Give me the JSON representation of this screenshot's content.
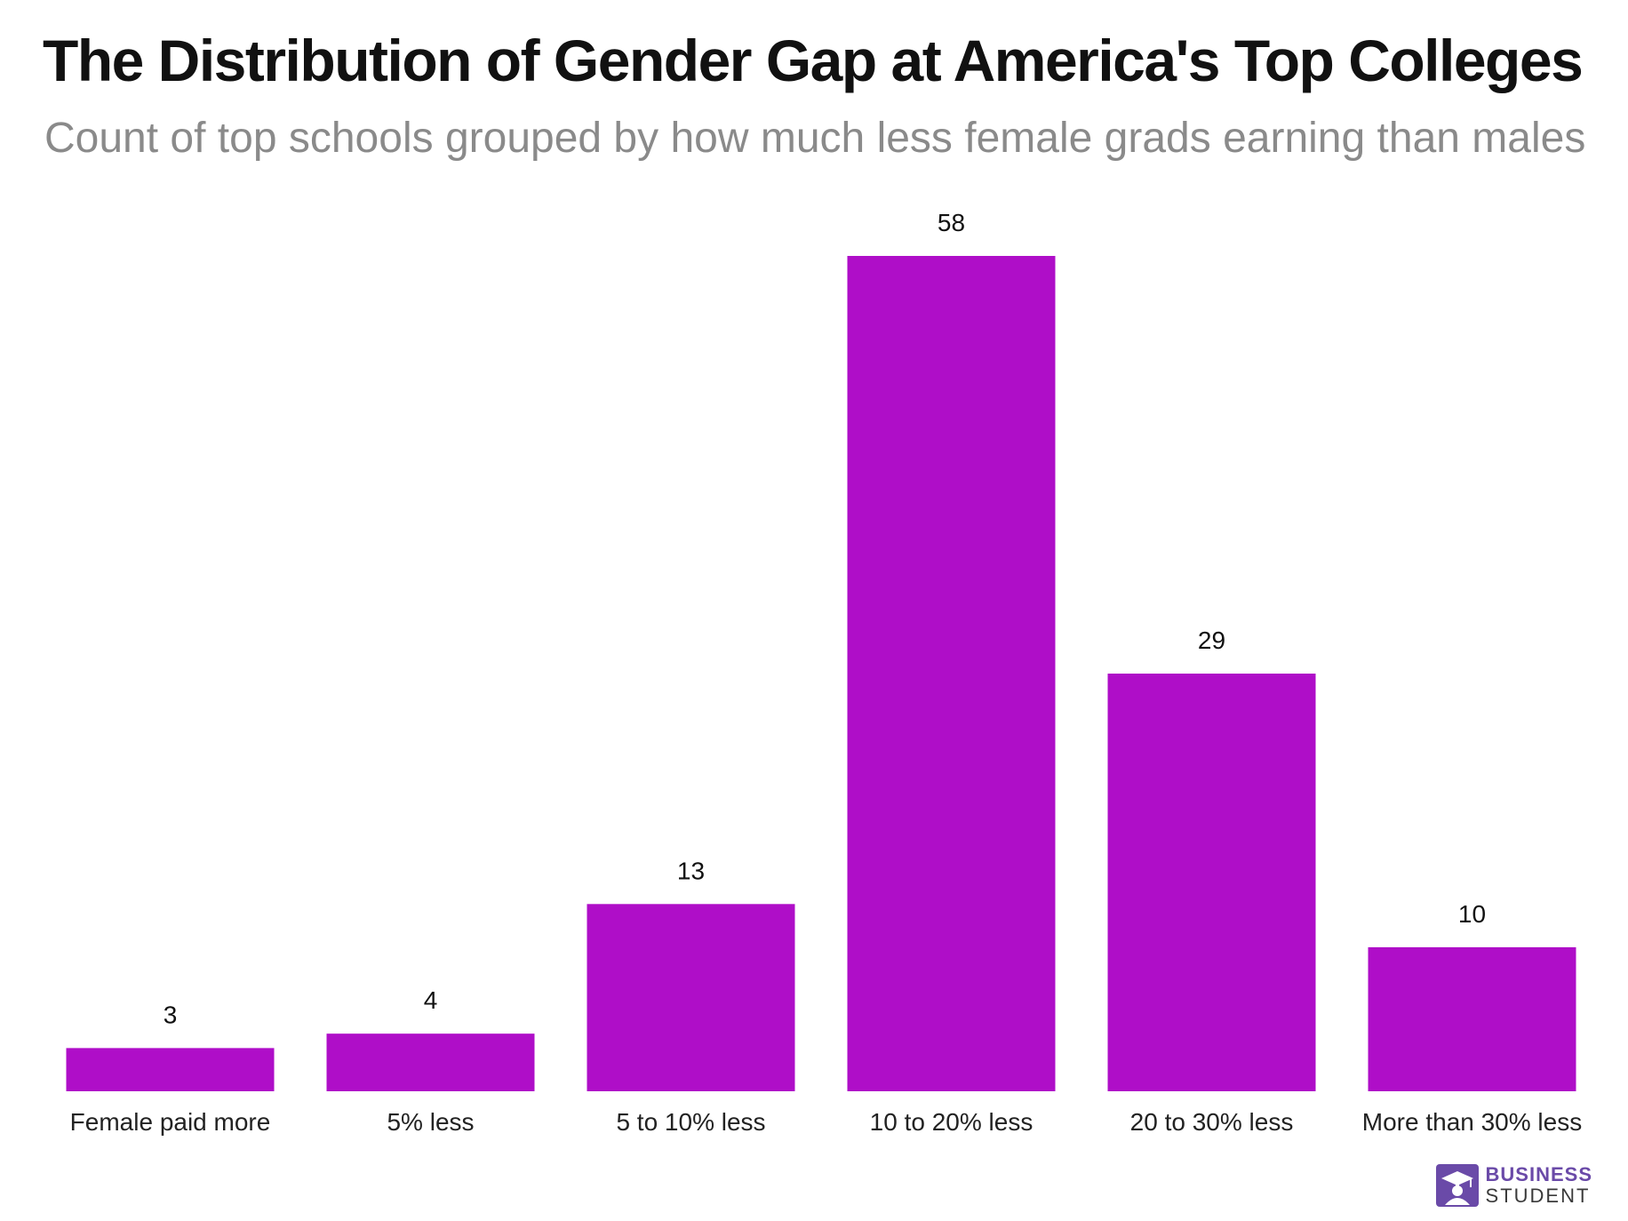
{
  "chart_data": {
    "type": "bar",
    "title": "The Distribution of Gender Gap at America's Top Colleges",
    "subtitle": "Count of top schools grouped by how much less female grads earning than males",
    "categories": [
      "Female paid more",
      "5% less",
      "5 to 10% less",
      "10 to 20% less",
      "20 to 30% less",
      "More than 30% less"
    ],
    "values": [
      3,
      4,
      13,
      58,
      29,
      10
    ],
    "xlabel": "",
    "ylabel": "",
    "ylim": [
      0,
      58
    ],
    "grid": false,
    "bar_color": "#af0ec8",
    "data_labels": true
  },
  "branding": {
    "line1": "BUSINESS",
    "line2": "STUDENT",
    "color": "#6a4aa8",
    "icon": "graduate-cap-icon"
  }
}
